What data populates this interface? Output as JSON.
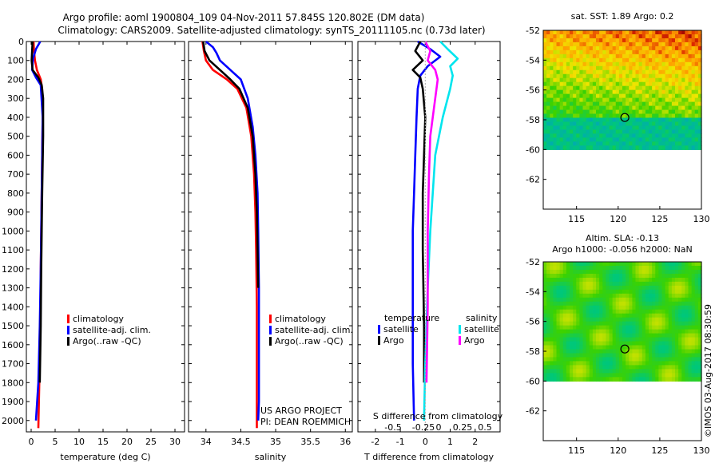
{
  "header": {
    "line1": "Argo profile: aoml 1900804_109 04-Nov-2011 57.845S 120.802E (DM data)",
    "line2": "Climatology: CARS2009. Satellite-adjusted climatology: synTS_20111105.nc (0.73d later)"
  },
  "colors": {
    "climatology": "#ff0000",
    "satellite": "#0000ff",
    "argo": "#000000",
    "sal_satellite": "#00e5ee",
    "sal_argo": "#ff00ff",
    "sst_circle": "#000000"
  },
  "chart_data": [
    {
      "id": "temperature",
      "type": "line",
      "xlabel": "temperature (deg C)",
      "ylabel": "",
      "xlim": [
        -1,
        32
      ],
      "ylim": [
        0,
        2060
      ],
      "y_reversed": true,
      "xticks": [
        0,
        5,
        10,
        15,
        20,
        25,
        30
      ],
      "yticks": [
        0,
        100,
        200,
        300,
        400,
        500,
        600,
        700,
        800,
        900,
        1000,
        1100,
        1200,
        1300,
        1400,
        1500,
        1600,
        1700,
        1800,
        1900,
        2000
      ],
      "legend": [
        "climatology",
        "satellite-adj. clim.",
        "Argo(..raw -QC)"
      ],
      "series": [
        {
          "name": "climatology",
          "color": "red",
          "x": [
            0.5,
            0.6,
            0.8,
            1.2,
            2.0,
            2.3,
            2.4,
            2.3,
            2.2,
            2.1,
            2.0,
            1.9,
            1.7,
            1.5
          ],
          "y": [
            0,
            50,
            100,
            150,
            200,
            250,
            400,
            600,
            800,
            1000,
            1200,
            1500,
            1800,
            2040
          ]
        },
        {
          "name": "satellite-adj. clim.",
          "color": "blue",
          "x": [
            1.9,
            1.0,
            0.4,
            0.2,
            1.0,
            2.0,
            2.4,
            2.3,
            2.2,
            2.1,
            2.0,
            1.8,
            1.5,
            1.0
          ],
          "y": [
            0,
            40,
            90,
            150,
            190,
            230,
            400,
            600,
            800,
            1000,
            1200,
            1500,
            1800,
            2000
          ]
        },
        {
          "name": "Argo(..raw -QC)",
          "color": "black",
          "x": [
            0.3,
            0.2,
            0.1,
            0.3,
            1.5,
            2.2,
            2.5,
            2.5,
            2.3,
            2.2,
            2.1,
            2.0,
            1.8
          ],
          "y": [
            0,
            50,
            100,
            150,
            190,
            230,
            300,
            500,
            800,
            1000,
            1200,
            1500,
            1800
          ]
        }
      ]
    },
    {
      "id": "salinity",
      "type": "line",
      "xlabel": "salinity",
      "ylabel": "",
      "xlim": [
        33.75,
        36.1
      ],
      "ylim": [
        0,
        2060
      ],
      "y_reversed": true,
      "xticks": [
        34,
        34.5,
        35,
        35.5,
        36
      ],
      "xticklabels": [
        "34",
        "34.5",
        "35",
        "35.5",
        "36"
      ],
      "legend": [
        "climatology",
        "satellite-adj. clim.",
        "Argo(..raw -QC)"
      ],
      "series": [
        {
          "name": "climatology",
          "color": "red",
          "x": [
            33.95,
            33.97,
            34.0,
            34.1,
            34.3,
            34.45,
            34.58,
            34.65,
            34.69,
            34.71,
            34.72,
            34.73,
            34.73,
            34.73
          ],
          "y": [
            0,
            50,
            100,
            150,
            200,
            250,
            350,
            500,
            700,
            900,
            1100,
            1400,
            1700,
            2040
          ]
        },
        {
          "name": "satellite-adj. clim.",
          "color": "blue",
          "x": [
            34.0,
            34.1,
            34.15,
            34.2,
            34.35,
            34.5,
            34.6,
            34.67,
            34.71,
            34.74,
            34.75,
            34.76,
            34.76,
            34.76,
            34.75
          ],
          "y": [
            0,
            30,
            60,
            100,
            150,
            200,
            300,
            450,
            600,
            800,
            1000,
            1300,
            1600,
            1900,
            2000
          ]
        },
        {
          "name": "Argo(..raw -QC)",
          "color": "black",
          "x": [
            33.96,
            33.98,
            34.05,
            34.2,
            34.35,
            34.48,
            34.6,
            34.67,
            34.71,
            34.73,
            34.74,
            34.75
          ],
          "y": [
            0,
            50,
            100,
            150,
            200,
            250,
            350,
            500,
            700,
            900,
            1100,
            1300
          ]
        }
      ]
    },
    {
      "id": "difference",
      "type": "line",
      "xlabel": "T difference from climatology",
      "ylabel": "",
      "top_xlabel": "S difference from climatology",
      "xlim": [
        -2.7,
        3.0
      ],
      "ylim": [
        0,
        2060
      ],
      "y_reversed": true,
      "xticks": [
        -2,
        -1,
        0,
        1,
        2
      ],
      "top_xticks": [
        -0.5,
        -0.25,
        0,
        0.25,
        0.5
      ],
      "legend_groups": [
        "temperature",
        "salinity"
      ],
      "legend": [
        "satellite",
        "Argo",
        "satellite",
        "Argo"
      ],
      "series": [
        {
          "name": "satellite",
          "group": "temperature",
          "color": "blue",
          "x": [
            -0.3,
            0.2,
            0.6,
            0.1,
            -0.2,
            -0.3,
            -0.35,
            -0.4,
            -0.45,
            -0.5,
            -0.5,
            -0.5,
            -0.45
          ],
          "y": [
            0,
            40,
            80,
            130,
            180,
            250,
            400,
            600,
            800,
            1000,
            1300,
            1700,
            2000
          ]
        },
        {
          "name": "Argo",
          "group": "temperature",
          "color": "black",
          "x": [
            -0.2,
            -0.4,
            -0.1,
            -0.5,
            -0.2,
            -0.1,
            0.0,
            -0.05,
            -0.1,
            -0.1,
            -0.05,
            -0.05
          ],
          "y": [
            0,
            50,
            100,
            150,
            190,
            250,
            400,
            600,
            800,
            1100,
            1500,
            1800
          ]
        },
        {
          "name": "satellite",
          "group": "salinity",
          "color": "cyan",
          "x": [
            0.6,
            0.9,
            1.3,
            1.0,
            1.1,
            1.0,
            0.7,
            0.4,
            0.3,
            0.2,
            0.1,
            0.0,
            -0.05
          ],
          "y": [
            0,
            40,
            90,
            130,
            180,
            250,
            400,
            600,
            800,
            1000,
            1300,
            1700,
            2000
          ]
        },
        {
          "name": "Argo",
          "group": "salinity",
          "color": "magenta",
          "x": [
            0.0,
            0.2,
            0.1,
            0.4,
            0.5,
            0.4,
            0.2,
            0.15,
            0.1,
            0.1,
            0.05
          ],
          "y": [
            0,
            50,
            100,
            150,
            200,
            300,
            500,
            700,
            1000,
            1400,
            1800
          ]
        }
      ]
    },
    {
      "id": "sst-map",
      "type": "heatmap",
      "title": "sat. SST: 1.89 Argo: 0.2",
      "xlim": [
        111,
        130
      ],
      "ylim": [
        -64,
        -52
      ],
      "xticks": [
        115,
        120,
        125,
        130
      ],
      "yticks": [
        -52,
        -54,
        -56,
        -58,
        -60,
        -62
      ],
      "marker": {
        "lon": 120.8,
        "lat": -57.85
      }
    },
    {
      "id": "sla-map",
      "type": "heatmap",
      "title": "Altim. SLA: -0.13",
      "subtitle": "Argo h1000: -0.056 h2000: NaN",
      "xlim": [
        111,
        130
      ],
      "ylim": [
        -64,
        -52
      ],
      "xticks": [
        115,
        120,
        125,
        130
      ],
      "yticks": [
        -52,
        -54,
        -56,
        -58,
        -60,
        -62
      ],
      "marker": {
        "lon": 120.8,
        "lat": -57.85
      }
    }
  ],
  "annotations": {
    "project": "US ARGO PROJECT",
    "pi": "PI: DEAN ROEMMICH",
    "credit": "©IMOS 03-Aug-2017 08:30:59"
  }
}
